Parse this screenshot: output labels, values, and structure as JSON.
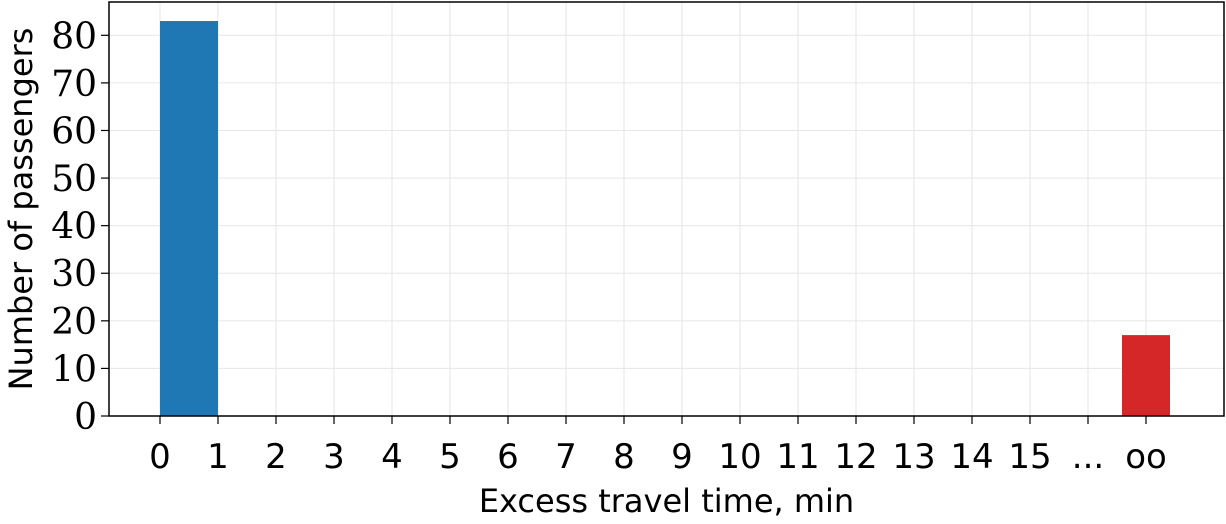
{
  "chart_data": {
    "type": "bar",
    "title": "",
    "xlabel": "Excess travel time, min",
    "ylabel": "Number of passengers",
    "x_tick_labels": [
      "0",
      "1",
      "2",
      "3",
      "4",
      "5",
      "6",
      "7",
      "8",
      "9",
      "10",
      "11",
      "12",
      "13",
      "14",
      "15",
      "...",
      "oo"
    ],
    "y_ticks": [
      0,
      10,
      20,
      30,
      40,
      50,
      60,
      70,
      80
    ],
    "ylim": [
      0,
      87
    ],
    "grid": true,
    "bars": [
      {
        "x_start": 0,
        "x_end": 1,
        "value": 83,
        "color": "#1f77b4"
      },
      {
        "x_start": 17,
        "x_end": 17,
        "value": 17,
        "color": "#d62728"
      }
    ]
  }
}
